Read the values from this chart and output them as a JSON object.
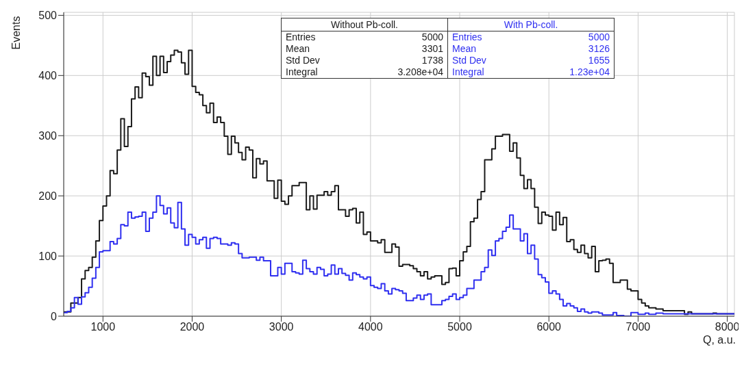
{
  "chart_data": {
    "type": "histogram",
    "xlabel": "Q, a.u.",
    "ylabel": "Events",
    "bins": [
      560,
      600,
      640,
      680,
      720,
      760,
      800,
      840,
      880,
      920,
      960,
      1000,
      1040,
      1080,
      1120,
      1160,
      1200,
      1240,
      1280,
      1320,
      1360,
      1400,
      1440,
      1480,
      1520,
      1560,
      1600,
      1640,
      1680,
      1720,
      1760,
      1800,
      1840,
      1880,
      1920,
      1960,
      2000,
      2040,
      2080,
      2120,
      2160,
      2200,
      2240,
      2280,
      2320,
      2360,
      2400,
      2440,
      2480,
      2520,
      2560,
      2600,
      2640,
      2680,
      2720,
      2760,
      2800,
      2840,
      2880,
      2920,
      2960,
      3000,
      3040,
      3080,
      3120,
      3160,
      3200,
      3240,
      3280,
      3320,
      3360,
      3400,
      3440,
      3480,
      3520,
      3560,
      3600,
      3640,
      3680,
      3720,
      3760,
      3800,
      3840,
      3880,
      3920,
      3960,
      4000,
      4040,
      4080,
      4120,
      4160,
      4200,
      4240,
      4280,
      4320,
      4360,
      4400,
      4440,
      4480,
      4520,
      4560,
      4600,
      4640,
      4680,
      4720,
      4760,
      4800,
      4840,
      4880,
      4920,
      4960,
      5000,
      5040,
      5080,
      5120,
      5160,
      5200,
      5240,
      5280,
      5320,
      5360,
      5400,
      5440,
      5480,
      5520,
      5560,
      5600,
      5640,
      5680,
      5720,
      5760,
      5800,
      5840,
      5880,
      5920,
      5960,
      6000,
      6040,
      6080,
      6120,
      6160,
      6200,
      6240,
      6280,
      6320,
      6360,
      6400,
      6440,
      6480,
      6520,
      6560,
      6600,
      6640,
      6680,
      6720,
      6760,
      6800,
      6840,
      6880,
      6920,
      6960,
      7000,
      7040,
      7080,
      7120,
      7160,
      7200,
      7240,
      7280,
      7320,
      7360,
      7400,
      7440,
      7480,
      7520,
      7560,
      7600,
      7640,
      7680,
      7720,
      7760,
      7800,
      7840,
      7880,
      7920,
      7960,
      8000,
      8040,
      8080
    ],
    "series": [
      {
        "name": "Without Pb-coll.",
        "color": "#1a1a1a",
        "values": [
          7,
          7,
          22,
          22,
          31,
          62,
          76,
          81,
          98,
          125,
          159,
          183,
          200,
          242,
          237,
          276,
          328,
          282,
          315,
          361,
          381,
          363,
          404,
          398,
          384,
          432,
          400,
          432,
          405,
          423,
          434,
          442,
          439,
          421,
          402,
          442,
          382,
          372,
          368,
          350,
          338,
          354,
          322,
          331,
          322,
          299,
          269,
          299,
          288,
          272,
          260,
          281,
          276,
          230,
          262,
          253,
          258,
          225,
          225,
          196,
          226,
          191,
          186,
          200,
          217,
          217,
          222,
          222,
          177,
          200,
          178,
          201,
          201,
          207,
          201,
          207,
          217,
          177,
          177,
          166,
          177,
          179,
          155,
          173,
          136,
          140,
          125,
          125,
          122,
          127,
          106,
          106,
          120,
          115,
          83,
          86,
          86,
          84,
          79,
          74,
          67,
          74,
          62,
          65,
          67,
          67,
          53,
          56,
          79,
          80,
          67,
          92,
          107,
          116,
          157,
          163,
          194,
          207,
          260,
          260,
          278,
          299,
          299,
          302,
          302,
          274,
          288,
          263,
          234,
          212,
          227,
          212,
          181,
          154,
          173,
          168,
          166,
          143,
          173,
          152,
          164,
          124,
          127,
          111,
          106,
          118,
          104,
          97,
          116,
          74,
          92,
          93,
          95,
          88,
          56,
          56,
          60,
          60,
          45,
          42,
          42,
          28,
          22,
          17,
          14,
          14,
          12,
          12,
          9,
          9,
          9,
          9,
          9,
          9,
          3,
          7,
          4,
          4,
          4,
          4,
          4,
          4,
          5,
          4,
          4,
          4,
          4,
          4
        ]
      },
      {
        "name": "With Pb-coll.",
        "color": "#2f2ff0",
        "values": [
          6,
          8,
          14,
          31,
          20,
          32,
          39,
          48,
          63,
          81,
          107,
          109,
          109,
          124,
          120,
          129,
          152,
          150,
          173,
          163,
          165,
          166,
          173,
          141,
          163,
          173,
          200,
          184,
          170,
          180,
          155,
          147,
          189,
          145,
          118,
          136,
          131,
          120,
          127,
          131,
          113,
          129,
          131,
          129,
          120,
          120,
          118,
          122,
          120,
          104,
          97,
          97,
          98,
          98,
          93,
          98,
          92,
          92,
          67,
          67,
          81,
          70,
          88,
          88,
          74,
          72,
          70,
          93,
          79,
          74,
          70,
          81,
          78,
          67,
          70,
          85,
          70,
          79,
          71,
          68,
          60,
          72,
          69,
          65,
          62,
          65,
          51,
          48,
          46,
          54,
          42,
          37,
          46,
          44,
          42,
          38,
          26,
          26,
          30,
          35,
          28,
          35,
          37,
          19,
          19,
          19,
          26,
          28,
          33,
          37,
          28,
          31,
          35,
          46,
          46,
          60,
          60,
          74,
          81,
          110,
          101,
          125,
          129,
          141,
          148,
          168,
          145,
          145,
          125,
          137,
          104,
          118,
          95,
          69,
          64,
          57,
          38,
          42,
          37,
          28,
          17,
          21,
          17,
          14,
          8,
          12,
          7,
          5,
          7,
          7,
          5,
          2,
          2,
          2,
          6,
          1,
          1,
          0,
          0,
          6,
          6,
          3,
          3,
          5,
          3,
          3,
          5,
          5,
          4,
          4,
          4,
          4,
          4,
          4,
          4,
          4,
          4,
          4,
          4,
          4,
          4,
          4,
          4,
          4,
          4,
          4,
          4,
          4
        ]
      }
    ],
    "annotations": [
      "Entries",
      "5000",
      "Mean",
      "3301",
      "Std Dev",
      "1738",
      "Integral",
      "3.208e+04",
      "Entries",
      "5000",
      "Mean",
      "3126",
      "Std Dev",
      "1655",
      "Integral",
      "1.23e+04"
    ],
    "xlim": [
      560,
      8080
    ],
    "xticks": [
      1000,
      2000,
      3000,
      4000,
      5000,
      6000,
      7000,
      8000
    ],
    "ylim": [
      0,
      505
    ],
    "yticks": [
      0,
      100,
      200,
      300,
      400,
      500
    ],
    "grid": true,
    "legend": "top"
  }
}
